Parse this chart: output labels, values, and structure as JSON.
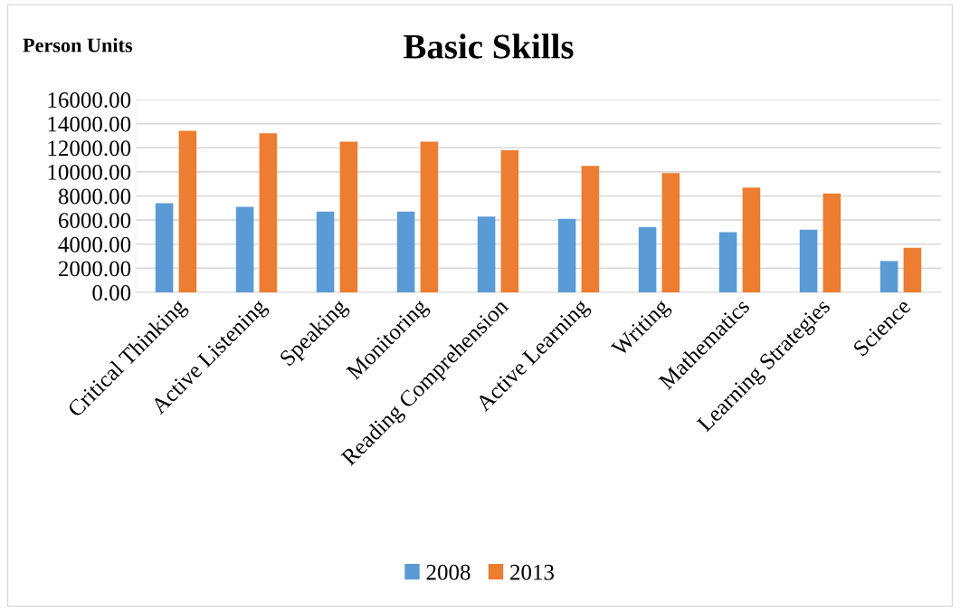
{
  "chart_data": {
    "type": "bar",
    "title": "Basic Skills",
    "ylabel": "Person Units",
    "categories": [
      "Critical Thinking",
      "Active Listening",
      "Speaking",
      "Monitoring",
      "Reading Comprehension",
      "Active Learning",
      "Writing",
      "Mathematics",
      "Learning Strategies",
      "Science"
    ],
    "series": [
      {
        "name": "2008",
        "color": "#5b9bd5",
        "values": [
          7400,
          7100,
          6700,
          6700,
          6300,
          6100,
          5400,
          5000,
          5200,
          2600
        ]
      },
      {
        "name": "2013",
        "color": "#ed7d31",
        "values": [
          13400,
          13200,
          12500,
          12500,
          11800,
          10500,
          9900,
          8700,
          8200,
          3700
        ]
      }
    ],
    "ylim": [
      0,
      16000
    ],
    "yticks": [
      {
        "value": 0,
        "label": "0.00"
      },
      {
        "value": 2000,
        "label": "2000.00"
      },
      {
        "value": 4000,
        "label": "4000.00"
      },
      {
        "value": 6000,
        "label": "6000.00"
      },
      {
        "value": 8000,
        "label": "8000.00"
      },
      {
        "value": 10000,
        "label": "10000.00"
      },
      {
        "value": 12000,
        "label": "12000.00"
      },
      {
        "value": 14000,
        "label": "14000.00"
      },
      {
        "value": 16000,
        "label": "16000.00"
      }
    ],
    "grid": "y",
    "legend": "bottom"
  }
}
